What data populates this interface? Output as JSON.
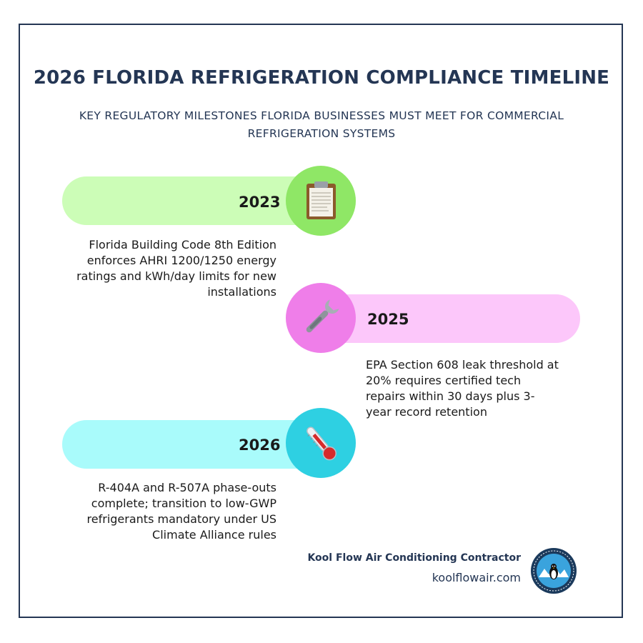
{
  "header": {
    "title": "2026 FLORIDA REFRIGERATION COMPLIANCE TIMELINE",
    "subtitle": "KEY REGULATORY MILESTONES FLORIDA BUSINESSES MUST MEET FOR COMMERCIAL REFRIGERATION SYSTEMS"
  },
  "milestones": [
    {
      "year": "2023",
      "icon": "clipboard-icon",
      "color_band": "#ccfdb7",
      "color_circle": "#8fe766",
      "description": "Florida Building Code 8th Edition enforces AHRI 1200/1250 energy ratings and kWh/day limits for new installations"
    },
    {
      "year": "2025",
      "icon": "wrench-icon",
      "color_band": "#fcc7fa",
      "color_circle": "#ef7ee9",
      "description": "EPA Section 608 leak threshold at 20% requires certified tech repairs within 30 days plus 3-year record retention"
    },
    {
      "year": "2026",
      "icon": "thermometer-icon",
      "color_band": "#a9fbfb",
      "color_circle": "#2ed0e2",
      "description": "R-404A and R-507A phase-outs complete; transition to low-GWP refrigerants mandatory under US Climate Alliance rules"
    }
  ],
  "footer": {
    "company": "Kool Flow Air Conditioning Contractor",
    "website": "koolflowair.com",
    "logo_icon": "kool-flow-logo-icon"
  }
}
